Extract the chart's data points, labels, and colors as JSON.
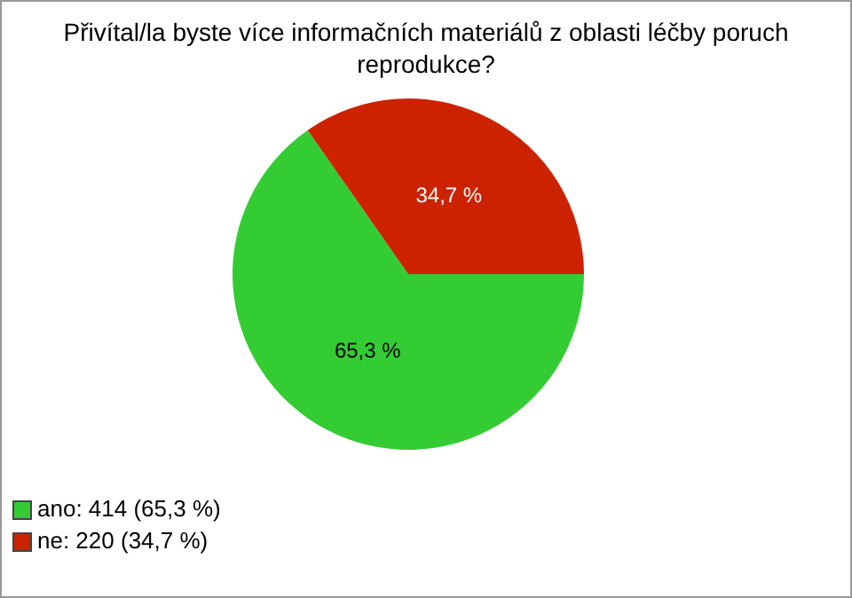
{
  "chart_data": {
    "type": "pie",
    "title": "Přivítal/la byste více informačních materiálů z oblasti léčby poruch reprodukce?",
    "categories": [
      "ano: 414 (65,3 %)",
      "ne: 220 (34,7 %)"
    ],
    "values": [
      65.3,
      34.7
    ],
    "colors": [
      "#33cc33",
      "#cc2200"
    ],
    "value_labels": [
      "65,3 %",
      "34,7 %"
    ],
    "legend": "bottom left"
  }
}
